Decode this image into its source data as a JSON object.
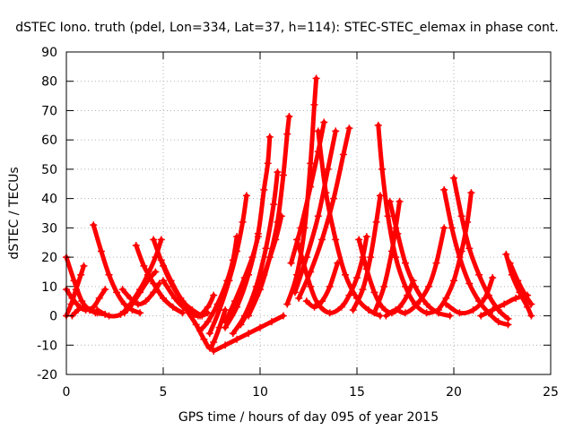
{
  "chart_data": {
    "type": "line",
    "title": "dSTEC Iono. truth (pdel, Lon=334, Lat=37, h=114): STEC-STEC_elemax in phase cont.",
    "xlabel": "GPS time / hours of day 095 of year 2015",
    "ylabel": "dSTEC  / TECUs",
    "xlim": [
      0,
      25
    ],
    "ylim": [
      -20,
      90
    ],
    "xticks": [
      0,
      5,
      10,
      15,
      20,
      25
    ],
    "yticks": [
      -20,
      -10,
      0,
      10,
      20,
      30,
      40,
      50,
      60,
      70,
      80,
      90
    ],
    "grid": true,
    "legend": "none",
    "marker": "+",
    "color": "#ff0000",
    "series": [
      {
        "values": [
          [
            0.0,
            20
          ],
          [
            0.4,
            12
          ],
          [
            0.8,
            5
          ],
          [
            1.2,
            2
          ],
          [
            1.6,
            1
          ],
          [
            2.0,
            0.5
          ]
        ]
      },
      {
        "values": [
          [
            0.0,
            9
          ],
          [
            0.3,
            6
          ],
          [
            0.7,
            3
          ],
          [
            1.0,
            2
          ],
          [
            1.4,
            3
          ],
          [
            1.7,
            6
          ],
          [
            2.0,
            9
          ]
        ]
      },
      {
        "values": [
          [
            0.0,
            0
          ],
          [
            0.25,
            4
          ],
          [
            0.5,
            9
          ],
          [
            0.75,
            14
          ],
          [
            0.9,
            17
          ]
        ]
      },
      {
        "values": [
          [
            0.3,
            0
          ],
          [
            0.6,
            2
          ],
          [
            0.9,
            3
          ],
          [
            1.2,
            2
          ],
          [
            1.5,
            1
          ]
        ]
      },
      {
        "values": [
          [
            1.4,
            31
          ],
          [
            1.8,
            22
          ],
          [
            2.2,
            14
          ],
          [
            2.6,
            8
          ],
          [
            3.0,
            4
          ],
          [
            3.4,
            2
          ],
          [
            3.8,
            1
          ]
        ]
      },
      {
        "values": [
          [
            1.6,
            2
          ],
          [
            2.2,
            0
          ],
          [
            2.8,
            0.5
          ],
          [
            3.3,
            4
          ],
          [
            3.8,
            9
          ],
          [
            4.2,
            14
          ],
          [
            4.6,
            20
          ],
          [
            4.9,
            26
          ]
        ]
      },
      {
        "values": [
          [
            3.0,
            1
          ],
          [
            3.4,
            4
          ],
          [
            3.8,
            8
          ],
          [
            4.2,
            12
          ],
          [
            4.6,
            15
          ]
        ]
      },
      {
        "values": [
          [
            2.9,
            9
          ],
          [
            3.3,
            6
          ],
          [
            3.7,
            4
          ],
          [
            4.1,
            5
          ],
          [
            4.5,
            8
          ],
          [
            4.8,
            11
          ]
        ]
      },
      {
        "values": [
          [
            3.6,
            24
          ],
          [
            4.0,
            17
          ],
          [
            4.5,
            11
          ],
          [
            5.0,
            6
          ],
          [
            5.5,
            3
          ],
          [
            6.0,
            1
          ]
        ]
      },
      {
        "values": [
          [
            4.5,
            26
          ],
          [
            5.0,
            17
          ],
          [
            5.5,
            10
          ],
          [
            6.0,
            5
          ],
          [
            6.5,
            2
          ],
          [
            7.0,
            0
          ]
        ]
      },
      {
        "values": [
          [
            4.9,
            19
          ],
          [
            5.4,
            12
          ],
          [
            5.9,
            6
          ],
          [
            6.4,
            2
          ],
          [
            6.9,
            0
          ],
          [
            7.3,
            1
          ]
        ]
      },
      {
        "values": [
          [
            5.0,
            12
          ],
          [
            5.6,
            6
          ],
          [
            6.2,
            2
          ],
          [
            6.8,
            0
          ],
          [
            7.3,
            3
          ],
          [
            7.6,
            7
          ]
        ]
      },
      {
        "values": [
          [
            6.3,
            1
          ],
          [
            6.7,
            -3
          ],
          [
            7.1,
            -8
          ],
          [
            7.4,
            -11
          ],
          [
            7.6,
            -9
          ],
          [
            7.9,
            -4
          ],
          [
            8.2,
            2
          ]
        ]
      },
      {
        "values": [
          [
            7.6,
            -12
          ],
          [
            8.2,
            -10
          ],
          [
            8.8,
            -8
          ],
          [
            9.4,
            -6
          ],
          [
            10.0,
            -4
          ],
          [
            10.6,
            -2
          ],
          [
            11.2,
            0
          ]
        ]
      },
      {
        "values": [
          [
            6.9,
            -5
          ],
          [
            7.3,
            -2
          ],
          [
            7.8,
            4
          ],
          [
            8.3,
            12
          ],
          [
            8.6,
            19
          ],
          [
            8.8,
            27
          ]
        ]
      },
      {
        "values": [
          [
            7.4,
            -6
          ],
          [
            7.9,
            2
          ],
          [
            8.4,
            12
          ],
          [
            8.8,
            22
          ],
          [
            9.1,
            32
          ],
          [
            9.3,
            41
          ]
        ]
      },
      {
        "values": [
          [
            8.2,
            -2
          ],
          [
            8.7,
            5
          ],
          [
            9.2,
            13
          ],
          [
            9.6,
            20
          ],
          [
            9.9,
            27
          ]
        ]
      },
      {
        "values": [
          [
            8.2,
            -4
          ],
          [
            8.8,
            3
          ],
          [
            9.4,
            14
          ],
          [
            9.9,
            28
          ],
          [
            10.2,
            43
          ],
          [
            10.4,
            52
          ],
          [
            10.5,
            61
          ]
        ]
      },
      {
        "values": [
          [
            8.6,
            -6
          ],
          [
            9.2,
            0
          ],
          [
            9.8,
            10
          ],
          [
            10.3,
            23
          ],
          [
            10.7,
            38
          ],
          [
            10.9,
            49
          ]
        ]
      },
      {
        "values": [
          [
            9.0,
            -3
          ],
          [
            9.6,
            4
          ],
          [
            10.2,
            14
          ],
          [
            10.8,
            26
          ],
          [
            11.1,
            34
          ]
        ]
      },
      {
        "values": [
          [
            9.4,
            0
          ],
          [
            10.0,
            9
          ],
          [
            10.5,
            20
          ],
          [
            10.9,
            32
          ],
          [
            11.2,
            48
          ],
          [
            11.4,
            62
          ],
          [
            11.5,
            68
          ]
        ]
      },
      {
        "values": [
          [
            11.9,
            26
          ],
          [
            12.2,
            19
          ],
          [
            12.6,
            10
          ],
          [
            13.0,
            4
          ],
          [
            13.6,
            1
          ],
          [
            14.2,
            3
          ],
          [
            14.6,
            7
          ],
          [
            15.0,
            13
          ],
          [
            15.3,
            20
          ],
          [
            15.5,
            27
          ]
        ]
      },
      {
        "values": [
          [
            11.4,
            4
          ],
          [
            11.9,
            14
          ],
          [
            12.3,
            30
          ],
          [
            12.6,
            52
          ],
          [
            12.8,
            72
          ],
          [
            12.9,
            81
          ]
        ]
      },
      {
        "values": [
          [
            11.6,
            18
          ],
          [
            12.1,
            30
          ],
          [
            12.6,
            44
          ],
          [
            13.0,
            56
          ],
          [
            13.3,
            66
          ]
        ]
      },
      {
        "values": [
          [
            11.8,
            8
          ],
          [
            12.4,
            20
          ],
          [
            13.0,
            34
          ],
          [
            13.5,
            50
          ],
          [
            13.9,
            63
          ]
        ]
      },
      {
        "values": [
          [
            12.0,
            6
          ],
          [
            12.6,
            15
          ],
          [
            13.2,
            26
          ],
          [
            13.8,
            40
          ],
          [
            14.3,
            55
          ],
          [
            14.6,
            64
          ]
        ]
      },
      {
        "values": [
          [
            13.0,
            63
          ],
          [
            13.4,
            42
          ],
          [
            13.9,
            26
          ],
          [
            14.4,
            14
          ],
          [
            15.0,
            6
          ],
          [
            15.6,
            2
          ],
          [
            16.2,
            0
          ]
        ]
      },
      {
        "values": [
          [
            12.4,
            5
          ],
          [
            12.8,
            3
          ],
          [
            13.2,
            5
          ],
          [
            13.6,
            10
          ],
          [
            14.0,
            18
          ]
        ]
      },
      {
        "values": [
          [
            15.1,
            26
          ],
          [
            15.5,
            16
          ],
          [
            15.9,
            8
          ],
          [
            16.3,
            3
          ],
          [
            16.8,
            1
          ],
          [
            17.2,
            3
          ],
          [
            17.6,
            7
          ],
          [
            17.9,
            12
          ]
        ]
      },
      {
        "values": [
          [
            14.8,
            2
          ],
          [
            15.3,
            9
          ],
          [
            15.7,
            20
          ],
          [
            16.0,
            32
          ],
          [
            16.2,
            41
          ]
        ]
      },
      {
        "values": [
          [
            16.1,
            65
          ],
          [
            16.3,
            50
          ],
          [
            16.6,
            34
          ],
          [
            17.0,
            20
          ],
          [
            17.5,
            10
          ],
          [
            18.0,
            4
          ],
          [
            18.6,
            1
          ],
          [
            19.2,
            2
          ]
        ]
      },
      {
        "values": [
          [
            16.7,
            39
          ],
          [
            17.1,
            28
          ],
          [
            17.5,
            18
          ],
          [
            18.0,
            10
          ],
          [
            18.6,
            4
          ],
          [
            19.2,
            1
          ],
          [
            19.8,
            0
          ]
        ]
      },
      {
        "values": [
          [
            15.9,
            1
          ],
          [
            16.4,
            10
          ],
          [
            16.8,
            22
          ],
          [
            17.0,
            30
          ],
          [
            17.2,
            39
          ]
        ]
      },
      {
        "values": [
          [
            16.5,
            0
          ],
          [
            17.0,
            2
          ],
          [
            17.5,
            1
          ],
          [
            18.1,
            4
          ],
          [
            18.7,
            10
          ],
          [
            19.1,
            18
          ],
          [
            19.5,
            30
          ]
        ]
      },
      {
        "values": [
          [
            19.5,
            43
          ],
          [
            19.9,
            30
          ],
          [
            20.3,
            20
          ],
          [
            20.8,
            11
          ],
          [
            21.3,
            5
          ],
          [
            21.8,
            1
          ],
          [
            22.3,
            -2
          ],
          [
            22.8,
            -3
          ]
        ]
      },
      {
        "values": [
          [
            20.0,
            47
          ],
          [
            20.4,
            34
          ],
          [
            20.8,
            23
          ],
          [
            21.3,
            14
          ],
          [
            21.8,
            7
          ],
          [
            22.3,
            2
          ],
          [
            22.8,
            -1
          ]
        ]
      },
      {
        "values": [
          [
            19.2,
            2
          ],
          [
            19.6,
            6
          ],
          [
            20.0,
            12
          ],
          [
            20.4,
            22
          ],
          [
            20.7,
            32
          ],
          [
            20.9,
            42
          ]
        ]
      },
      {
        "values": [
          [
            22.7,
            21
          ],
          [
            23.0,
            14
          ],
          [
            23.4,
            8
          ],
          [
            23.8,
            3
          ],
          [
            24.0,
            0
          ]
        ]
      },
      {
        "values": [
          [
            22.9,
            18
          ],
          [
            23.3,
            12
          ],
          [
            23.7,
            7
          ],
          [
            24.0,
            4
          ]
        ]
      },
      {
        "values": [
          [
            21.4,
            0
          ],
          [
            22.0,
            2
          ],
          [
            22.6,
            4
          ],
          [
            23.2,
            6
          ],
          [
            23.8,
            7
          ]
        ]
      },
      {
        "values": [
          [
            19.6,
            4
          ],
          [
            20.3,
            1
          ],
          [
            21.0,
            2
          ],
          [
            21.6,
            6
          ],
          [
            22.0,
            13
          ]
        ]
      }
    ]
  }
}
